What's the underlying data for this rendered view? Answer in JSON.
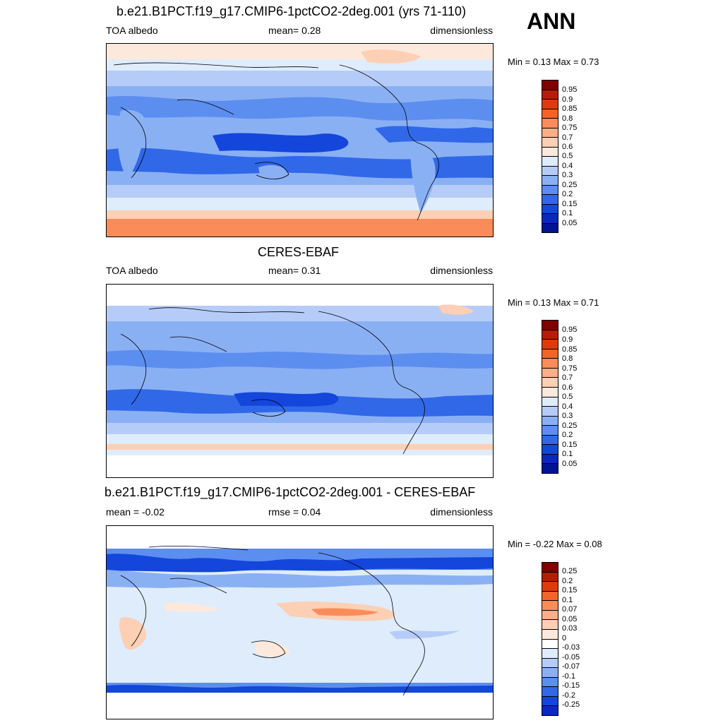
{
  "season": "ANN",
  "panels": [
    {
      "title": "b.e21.B1PCT.f19_g17.CMIP6-1pctCO2-2deg.001 (yrs 71-110)",
      "left_label": "TOA albedo",
      "center_label": "mean=   0.28",
      "right_label": "dimensionless",
      "minmax": "Min =   0.13 Max =   0.73"
    },
    {
      "title": "CERES-EBAF",
      "left_label": "TOA albedo",
      "center_label": "mean=   0.31",
      "right_label": "dimensionless",
      "minmax": "Min =   0.13 Max =   0.71"
    },
    {
      "title": "b.e21.B1PCT.f19_g17.CMIP6-1pctCO2-2deg.001 - CERES-EBAF",
      "left_label": "mean =  -0.02",
      "center_label": "rmse =   0.04",
      "right_label": "dimensionless",
      "minmax": "Min =  -0.22 Max =   0.08"
    }
  ],
  "colorbars": {
    "abs_colors": [
      "#800000",
      "#b81c05",
      "#e03a0a",
      "#f4632a",
      "#fa8c5a",
      "#fcae86",
      "#fdcfb4",
      "#fde9dc",
      "#dfecfb",
      "#b6ccf8",
      "#8ab0f4",
      "#5c8ef0",
      "#3068e8",
      "#1446dc",
      "#0a28c0",
      "#001494",
      "#000080"
    ],
    "abs_ticks": [
      "0.95",
      "0.9",
      "0.85",
      "0.8",
      "0.75",
      "0.7",
      "0.6",
      "0.5",
      "0.4",
      "0.3",
      "0.25",
      "0.2",
      "0.15",
      "0.1",
      "0.05"
    ],
    "diff_colors": [
      "#800000",
      "#b81c05",
      "#e03a0a",
      "#f4632a",
      "#fa8c5a",
      "#fcae86",
      "#fdcfb4",
      "#fde9dc",
      "#ffffff",
      "#dfecfb",
      "#b6ccf8",
      "#8ab0f4",
      "#5c8ef0",
      "#3068e8",
      "#1446dc",
      "#0a28c0",
      "#001494",
      "#000080"
    ],
    "diff_ticks": [
      "0.25",
      "0.2",
      "0.15",
      "0.1",
      "0.07",
      "0.05",
      "0.03",
      "0",
      "-0.03",
      "-0.05",
      "-0.07",
      "-0.1",
      "-0.15",
      "-0.2",
      "-0.25"
    ]
  }
}
